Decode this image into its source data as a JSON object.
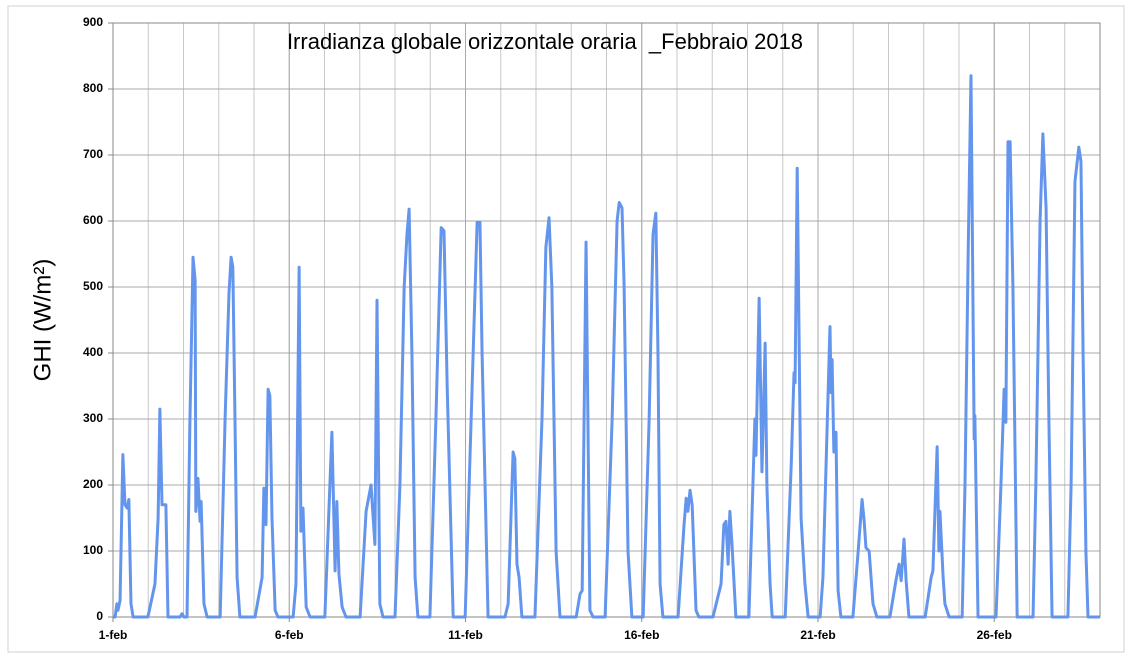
{
  "chart_data": {
    "type": "line",
    "title": "Irradianza globale orizzontale oraria  _Febbraio 2018",
    "y_label": "GHI (W/m²)",
    "color": "#6495ed",
    "grid": true,
    "xlim": [
      1,
      29
    ],
    "xticks": [
      {
        "value": 1,
        "label": "1-feb"
      },
      {
        "value": 6,
        "label": "6-feb"
      },
      {
        "value": 11,
        "label": "11-feb"
      },
      {
        "value": 16,
        "label": "16-feb"
      },
      {
        "value": 21,
        "label": "21-feb"
      },
      {
        "value": 26,
        "label": "26-feb"
      }
    ],
    "ylim": [
      0,
      900
    ],
    "yticks": [
      0,
      100,
      200,
      300,
      400,
      500,
      600,
      700,
      800,
      900
    ],
    "x": [
      1,
      1.06,
      1.11,
      1.14,
      1.2,
      1.28,
      1.34,
      1.4,
      1.45,
      1.51,
      1.57,
      1.99,
      2.19,
      2.28,
      2.33,
      2.39,
      2.5,
      2.56,
      2.9,
      2.96,
      3.01,
      3.1,
      3.18,
      3.27,
      3.33,
      3.35,
      3.41,
      3.47,
      3.5,
      3.58,
      3.67,
      4.04,
      4.18,
      4.29,
      4.35,
      4.4,
      4.46,
      4.52,
      4.6,
      5.03,
      5.23,
      5.28,
      5.34,
      5.4,
      5.45,
      5.51,
      5.6,
      5.68,
      6.11,
      6.19,
      6.28,
      6.33,
      6.39,
      6.48,
      6.59,
      7.01,
      7.21,
      7.3,
      7.35,
      7.41,
      7.5,
      7.61,
      8.01,
      8.18,
      8.32,
      8.43,
      8.49,
      8.57,
      8.66,
      9,
      9.14,
      9.26,
      9.34,
      9.4,
      9.48,
      9.57,
      9.65,
      9.99,
      10.16,
      10.31,
      10.39,
      10.48,
      10.65,
      10.99,
      11.16,
      11.33,
      11.41,
      11.47,
      11.64,
      12.12,
      12.21,
      12.35,
      12.4,
      12.46,
      12.52,
      12.6,
      12.97,
      13.17,
      13.28,
      13.37,
      13.45,
      13.57,
      13.68,
      14.14,
      14.25,
      14.31,
      14.42,
      14.53,
      14.62,
      14.96,
      15.16,
      15.3,
      15.36,
      15.44,
      15.5,
      15.61,
      15.72,
      16.04,
      16.21,
      16.32,
      16.4,
      16.46,
      16.52,
      16.6,
      17.03,
      17.2,
      17.26,
      17.31,
      17.37,
      17.43,
      17.54,
      17.62,
      18.02,
      18.25,
      18.33,
      18.39,
      18.45,
      18.5,
      18.56,
      18.67,
      19.04,
      19.21,
      19.24,
      19.33,
      19.41,
      19.5,
      19.55,
      19.64,
      19.7,
      20.07,
      20.24,
      20.32,
      20.35,
      20.41,
      20.52,
      20.63,
      20.72,
      21.06,
      21.14,
      21.26,
      21.34,
      21.37,
      21.4,
      21.45,
      21.51,
      21.57,
      21.65,
      21.99,
      22.14,
      22.25,
      22.31,
      22.36,
      22.45,
      22.56,
      22.67,
      23.04,
      23.21,
      23.3,
      23.36,
      23.44,
      23.5,
      23.58,
      24.04,
      24.21,
      24.26,
      24.38,
      24.43,
      24.46,
      24.55,
      24.6,
      24.72,
      25.09,
      25.17,
      25.26,
      25.34,
      25.43,
      25.45,
      25.54,
      26.05,
      26.19,
      26.28,
      26.33,
      26.39,
      26.45,
      26.53,
      26.65,
      27.1,
      27.18,
      27.3,
      27.38,
      27.47,
      27.55,
      27.64,
      28.09,
      28.18,
      28.29,
      28.4,
      28.46,
      28.52,
      28.6,
      28.66,
      29
    ],
    "values": [
      0,
      0,
      20,
      10,
      25,
      246,
      170,
      165,
      178,
      20,
      0,
      0,
      50,
      150,
      315,
      170,
      170,
      0,
      0,
      5,
      0,
      0,
      290,
      545,
      510,
      160,
      210,
      145,
      175,
      20,
      0,
      0,
      300,
      490,
      545,
      530,
      300,
      60,
      0,
      0,
      60,
      195,
      140,
      345,
      335,
      150,
      10,
      0,
      0,
      50,
      530,
      130,
      165,
      15,
      0,
      0,
      280,
      70,
      175,
      65,
      15,
      0,
      0,
      160,
      200,
      110,
      480,
      20,
      0,
      0,
      200,
      500,
      580,
      618,
      400,
      60,
      0,
      0,
      300,
      590,
      585,
      350,
      0,
      0,
      300,
      598,
      598,
      400,
      0,
      0,
      20,
      250,
      240,
      80,
      60,
      0,
      0,
      300,
      560,
      605,
      500,
      100,
      0,
      0,
      35,
      40,
      568,
      10,
      0,
      0,
      300,
      600,
      628,
      620,
      500,
      100,
      0,
      0,
      300,
      580,
      612,
      400,
      50,
      0,
      0,
      140,
      180,
      160,
      192,
      170,
      10,
      0,
      0,
      50,
      140,
      145,
      80,
      160,
      110,
      0,
      0,
      300,
      245,
      483,
      220,
      415,
      200,
      50,
      0,
      0,
      230,
      370,
      355,
      680,
      150,
      50,
      0,
      0,
      60,
      290,
      440,
      340,
      390,
      250,
      280,
      40,
      0,
      0,
      100,
      178,
      145,
      105,
      100,
      20,
      0,
      0,
      55,
      80,
      55,
      118,
      55,
      0,
      0,
      60,
      70,
      258,
      100,
      160,
      60,
      20,
      0,
      0,
      200,
      550,
      820,
      270,
      305,
      0,
      0,
      200,
      345,
      295,
      720,
      720,
      500,
      0,
      0,
      200,
      600,
      732,
      620,
      300,
      0,
      0,
      200,
      660,
      712,
      690,
      400,
      100,
      0,
      0
    ]
  }
}
